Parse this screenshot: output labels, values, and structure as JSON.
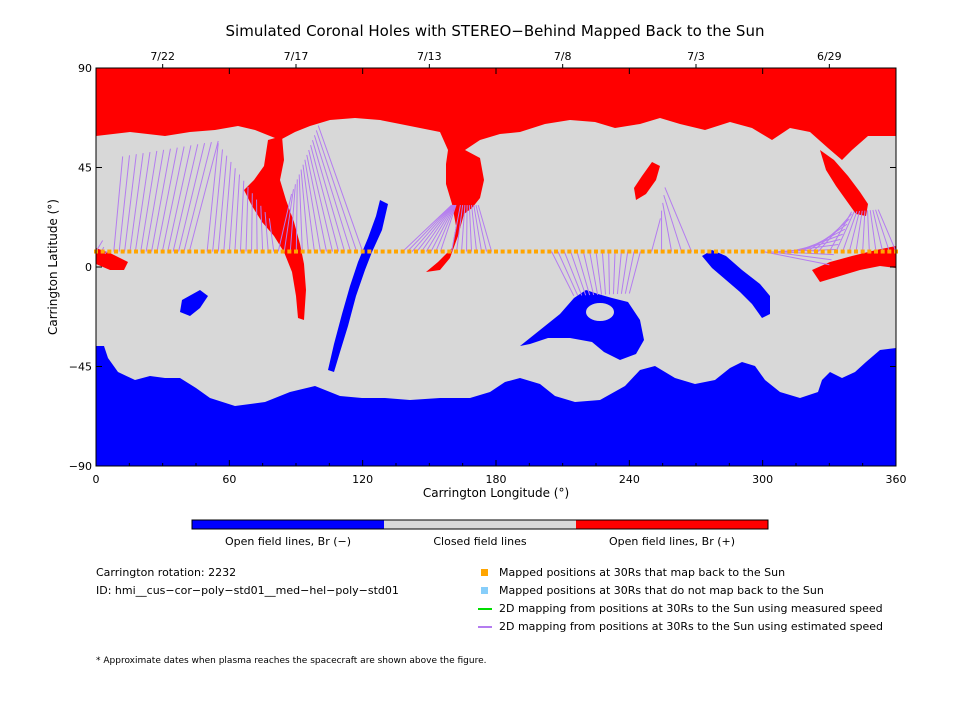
{
  "chart_data": {
    "type": "map",
    "title": "Simulated Coronal Holes with STEREO−Behind Mapped Back to the Sun",
    "xlabel": "Carrington Longitude (°)",
    "ylabel": "Carrington Latitude (°)",
    "xlim": [
      0,
      360
    ],
    "ylim": [
      -90,
      90
    ],
    "x_ticks": [
      0,
      60,
      120,
      180,
      240,
      300,
      360
    ],
    "y_ticks": [
      -90,
      -45,
      0,
      45,
      90
    ],
    "x_tick_labels": [
      "0",
      "60",
      "120",
      "180",
      "240",
      "300",
      "360"
    ],
    "y_tick_labels": [
      "−90",
      "−45",
      "0",
      "45",
      "90"
    ],
    "top_axis_dates": [
      {
        "date": "7/22",
        "lon": 30
      },
      {
        "date": "7/17",
        "lon": 90
      },
      {
        "date": "7/13",
        "lon": 150
      },
      {
        "date": "7/8",
        "lon": 210
      },
      {
        "date": "7/3",
        "lon": 270
      },
      {
        "date": "6/29",
        "lon": 330
      }
    ],
    "mapped_latitude": 7,
    "mapped_lon_range": [
      0,
      360
    ],
    "mapped_lon_step": 3,
    "colors": {
      "open_negative": "#0000ff",
      "closed": "#d8d8d8",
      "open_positive": "#ff0000",
      "mapped_back": "#ffa500",
      "not_mapped": "#87cefa",
      "measured_speed": "#00dd00",
      "estimated_speed": "#b47cf0"
    },
    "colorbar": [
      {
        "label": "Open field lines, Br (−)",
        "color": "#0000ff"
      },
      {
        "label": "Closed field lines",
        "color": "#d8d8d8"
      },
      {
        "label": "Open field lines, Br (+)",
        "color": "#ff0000"
      }
    ]
  },
  "info": {
    "rotation": "Carrington rotation: 2232",
    "id": "ID: hmi__cus−cor−poly−std01__med−hel−poly−std01"
  },
  "legend": [
    {
      "label": "Mapped positions at 30Rs that map back to the Sun",
      "symbol": "square",
      "color": "#ffa500"
    },
    {
      "label": "Mapped positions at 30Rs that do not map back to the Sun",
      "symbol": "square",
      "color": "#87cefa"
    },
    {
      "label": "2D mapping from positions at 30Rs to the Sun using measured speed",
      "symbol": "line",
      "color": "#00dd00"
    },
    {
      "label": "2D mapping from positions at 30Rs to the Sun using estimated speed",
      "symbol": "line",
      "color": "#b47cf0"
    }
  ],
  "footnote": "* Approximate dates when plasma reaches the spacecraft are shown above the figure."
}
